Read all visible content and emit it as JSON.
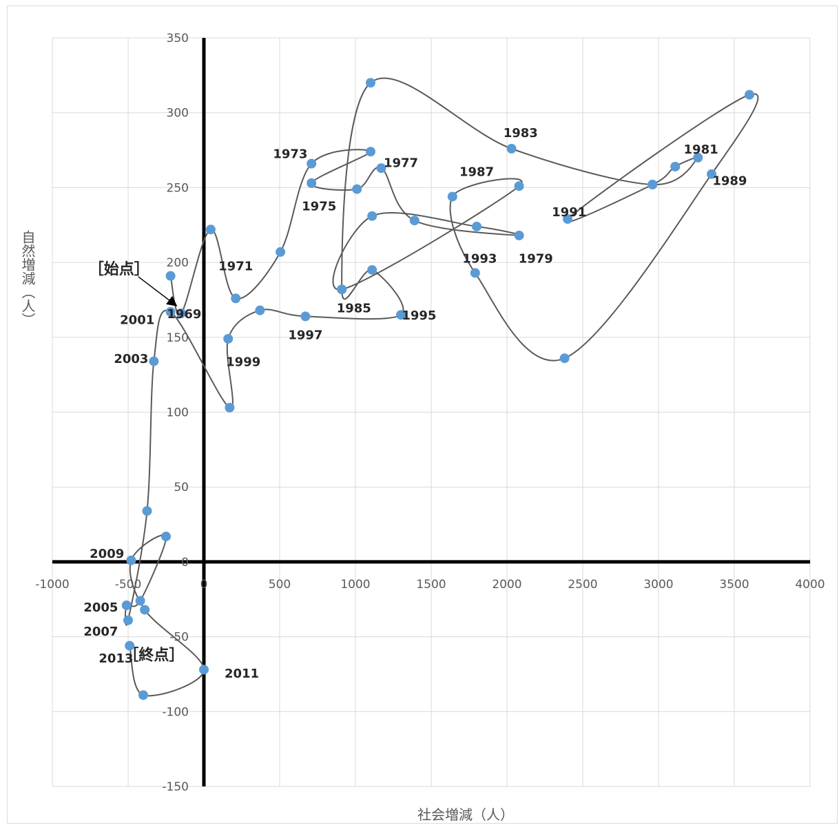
{
  "chart_data": {
    "type": "scatter",
    "title": "",
    "xlabel": "社会増減（人）",
    "ylabel": "自然増減（人）",
    "xlim": [
      -1000,
      4000
    ],
    "ylim": [
      -150,
      350
    ],
    "x_ticks": [
      "-1000",
      "-500",
      "0",
      "500",
      "1000",
      "1500",
      "2000",
      "2500",
      "3000",
      "3500",
      "4000"
    ],
    "y_ticks": [
      "-150",
      "-100",
      "-50",
      "0",
      "50",
      "100",
      "150",
      "200",
      "250",
      "300",
      "350"
    ],
    "grid": true,
    "connected": true,
    "marker_color": "#5b9bd5",
    "line_color": "#595959",
    "series": [
      {
        "points": [
          {
            "x": -220,
            "y": 191
          },
          {
            "x": -150,
            "y": 166
          },
          {
            "x": 45,
            "y": 222
          },
          {
            "x": 210,
            "y": 176
          },
          {
            "x": 505,
            "y": 207
          },
          {
            "x": 710,
            "y": 266
          },
          {
            "x": 1100,
            "y": 274
          },
          {
            "x": 710,
            "y": 253
          },
          {
            "x": 1010,
            "y": 249
          },
          {
            "x": 1170,
            "y": 263
          },
          {
            "x": 1390,
            "y": 228
          },
          {
            "x": 2080,
            "y": 218
          },
          {
            "x": 1800,
            "y": 224
          },
          {
            "x": 1110,
            "y": 231
          },
          {
            "x": 910,
            "y": 182
          },
          {
            "x": 2080,
            "y": 251
          },
          {
            "x": 1640,
            "y": 244
          },
          {
            "x": 1790,
            "y": 193
          },
          {
            "x": 2380,
            "y": 136
          },
          {
            "x": 3350,
            "y": 259
          },
          {
            "x": 3600,
            "y": 312
          },
          {
            "x": 2400,
            "y": 229
          },
          {
            "x": 2960,
            "y": 252
          },
          {
            "x": 3110,
            "y": 264
          },
          {
            "x": 3260,
            "y": 270
          },
          {
            "x": 2960,
            "y": 252
          },
          {
            "x": 2030,
            "y": 276
          },
          {
            "x": 1100,
            "y": 320
          },
          {
            "x": 910,
            "y": 182
          },
          {
            "x": 1110,
            "y": 195
          },
          {
            "x": 1300,
            "y": 165
          },
          {
            "x": 670,
            "y": 164
          },
          {
            "x": 370,
            "y": 168
          },
          {
            "x": 160,
            "y": 149
          },
          {
            "x": 170,
            "y": 103
          },
          {
            "x": -220,
            "y": 167
          },
          {
            "x": -330,
            "y": 134
          },
          {
            "x": -375,
            "y": 34
          },
          {
            "x": -500,
            "y": -39
          },
          {
            "x": -510,
            "y": -29
          },
          {
            "x": -420,
            "y": -26
          },
          {
            "x": -250,
            "y": 17
          },
          {
            "x": -480,
            "y": 1
          },
          {
            "x": -390,
            "y": -32
          },
          {
            "x": 0,
            "y": -72
          },
          {
            "x": -400,
            "y": -89
          },
          {
            "x": -490,
            "y": -56
          }
        ]
      }
    ],
    "labels": [
      {
        "text": "1969",
        "x": -130,
        "y": 166
      },
      {
        "text": "1971",
        "x": 210,
        "y": 198
      },
      {
        "text": "1973",
        "x": 570,
        "y": 273
      },
      {
        "text": "1975",
        "x": 760,
        "y": 238
      },
      {
        "text": "1977",
        "x": 1300,
        "y": 267
      },
      {
        "text": "1979",
        "x": 2190,
        "y": 203
      },
      {
        "text": "1981",
        "x": 3280,
        "y": 276
      },
      {
        "text": "1983",
        "x": 2090,
        "y": 287
      },
      {
        "text": "1985",
        "x": 990,
        "y": 170
      },
      {
        "text": "1987",
        "x": 1800,
        "y": 261
      },
      {
        "text": "1989",
        "x": 3470,
        "y": 255
      },
      {
        "text": "1991",
        "x": 2410,
        "y": 234
      },
      {
        "text": "1993",
        "x": 1820,
        "y": 203
      },
      {
        "text": "1995",
        "x": 1420,
        "y": 165
      },
      {
        "text": "1997",
        "x": 670,
        "y": 152
      },
      {
        "text": "1999",
        "x": 260,
        "y": 134
      },
      {
        "text": "2001",
        "x": -440,
        "y": 162
      },
      {
        "text": "2003",
        "x": -480,
        "y": 136
      },
      {
        "text": "2005",
        "x": -680,
        "y": -30
      },
      {
        "text": "2007",
        "x": -680,
        "y": -46
      },
      {
        "text": "2009",
        "x": -640,
        "y": 6
      },
      {
        "text": "2011",
        "x": 250,
        "y": -74
      },
      {
        "text": "2013",
        "x": -580,
        "y": -64
      }
    ],
    "annotations": [
      {
        "text": "［始点］",
        "x": -560,
        "y": 196
      },
      {
        "text": "［終点］",
        "x": -330,
        "y": -62
      }
    ]
  }
}
